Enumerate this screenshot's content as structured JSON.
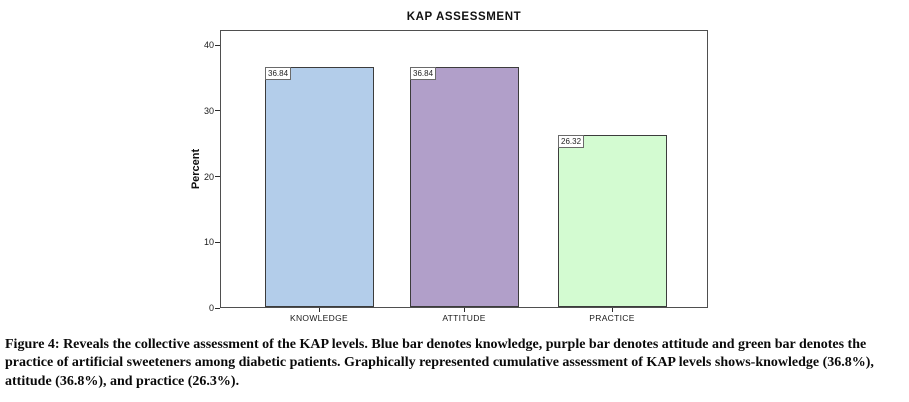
{
  "figure": {
    "caption": "Figure 4: Reveals the collective assessment of the KAP levels. Blue bar denotes knowledge, purple bar denotes attitude and green bar denotes the practice of artificial sweeteners among diabetic patients. Graphically represented cumulative assessment of KAP levels shows-knowledge (36.8%), attitude (36.8%), and practice (26.3%)."
  },
  "chart_data": {
    "type": "bar",
    "title": "KAP ASSESSMENT",
    "categories": [
      "KNOWLEDGE",
      "ATTITUDE",
      "PRACTICE"
    ],
    "values": [
      36.84,
      36.84,
      26.32
    ],
    "value_labels": [
      "36.84",
      "36.84",
      "26.32"
    ],
    "colors": [
      "#b3cdea",
      "#b19fc9",
      "#d3fbd1"
    ],
    "bar_border_color": "#3c3c3c",
    "frame_color": "#4f4f4f",
    "xlabel": "",
    "ylabel": "Percent",
    "yticks": [
      0,
      10,
      20,
      30,
      40
    ],
    "ylim": [
      0,
      42.3
    ],
    "grid": false,
    "legend": "none"
  }
}
